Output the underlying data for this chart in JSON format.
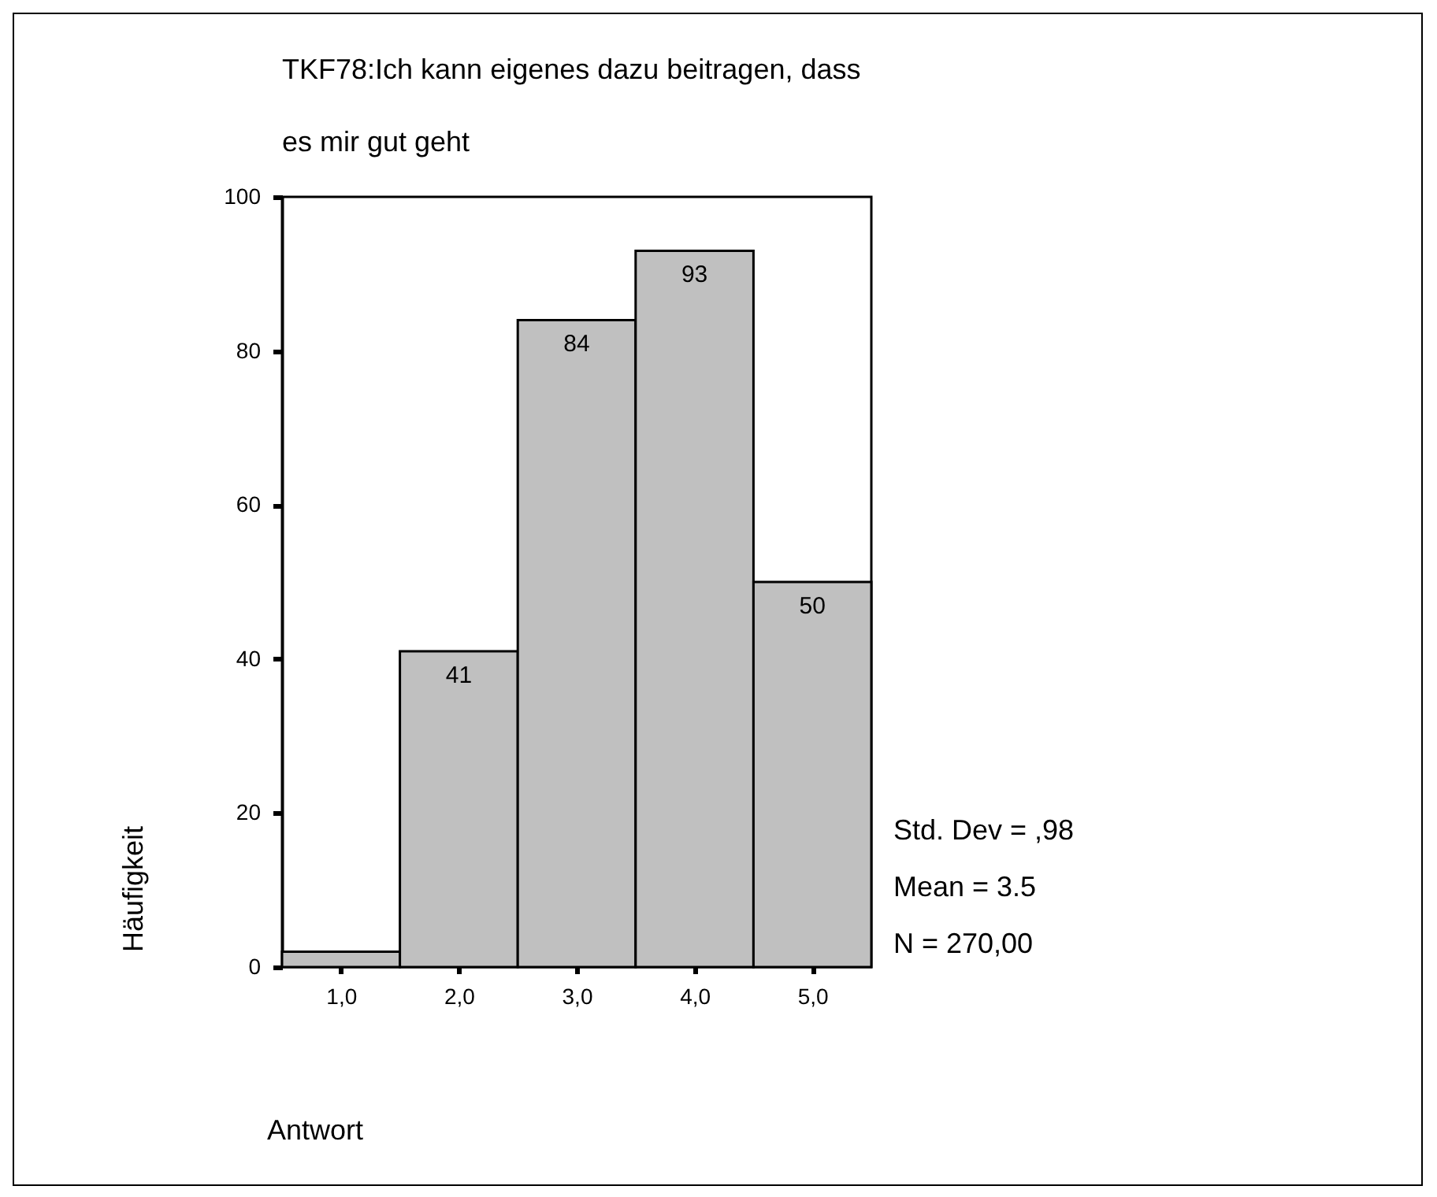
{
  "chart_data": {
    "type": "histogram",
    "title": "TKF78:Ich kann eigenes dazu beitragen, dass es mir gut geht",
    "xlabel": "Antwort",
    "ylabel": "Häufigkeit",
    "bins": [
      0.5,
      1.5,
      2.5,
      3.5,
      4.5,
      5.5
    ],
    "values": [
      2,
      41,
      84,
      93,
      50
    ],
    "value_labels": [
      null,
      "41",
      "84",
      "93",
      "50"
    ],
    "color": "#c0c0c0",
    "xlim": [
      0.5,
      5.5
    ],
    "xticks": [
      {
        "value": 1,
        "label": "1,0"
      },
      {
        "value": 2,
        "label": "2,0"
      },
      {
        "value": 3,
        "label": "3,0"
      },
      {
        "value": 4,
        "label": "4,0"
      },
      {
        "value": 5,
        "label": "5,0"
      }
    ],
    "ylim": [
      0,
      100
    ],
    "yticks": [
      0,
      20,
      40,
      60,
      80,
      100
    ],
    "grid": false,
    "annotations": [
      "Std. Dev = ,98",
      "Mean = 3.5",
      "N = 270,00"
    ]
  }
}
